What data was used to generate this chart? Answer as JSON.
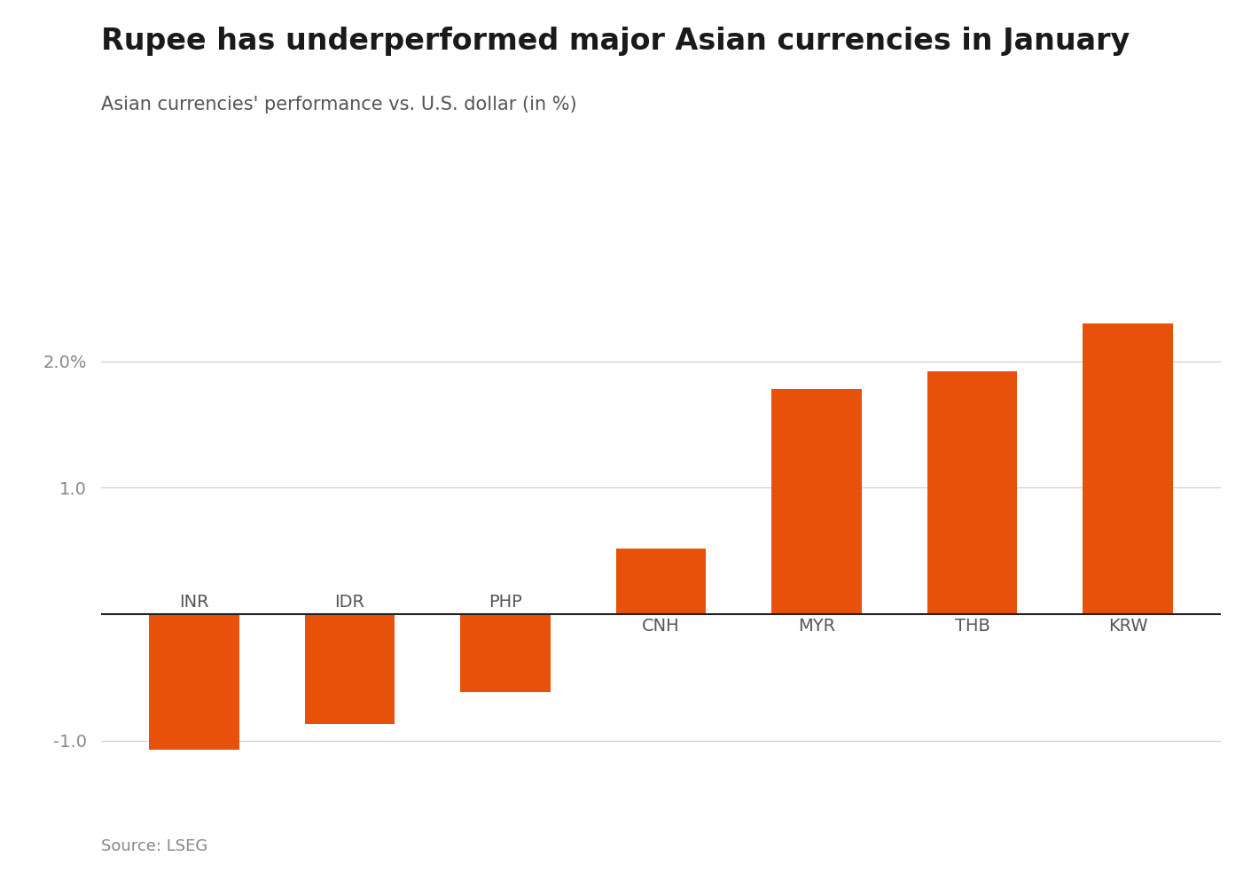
{
  "title": "Rupee has underperformed major Asian currencies in January",
  "subtitle": "Asian currencies' performance vs. U.S. dollar (in %)",
  "source": "Source: LSEG",
  "categories": [
    "INR",
    "IDR",
    "PHP",
    "CNH",
    "MYR",
    "THB",
    "KRW"
  ],
  "values": [
    -1.07,
    -0.87,
    -0.62,
    0.52,
    1.78,
    1.92,
    2.3
  ],
  "bar_color": "#E8510A",
  "background_color": "#ffffff",
  "ylim": [
    -1.35,
    2.65
  ],
  "yticks": [
    -1.0,
    0.0,
    1.0,
    2.0
  ],
  "title_fontsize": 24,
  "subtitle_fontsize": 15,
  "label_fontsize": 14,
  "source_fontsize": 13
}
